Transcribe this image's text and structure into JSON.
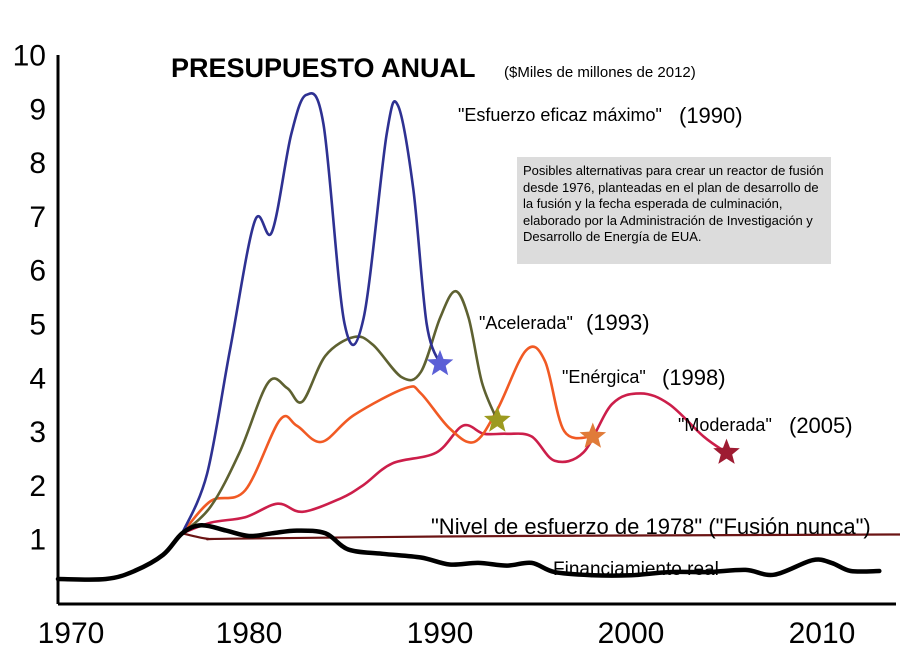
{
  "chart_data": {
    "type": "line",
    "title": "PRESUPUESTO ANUAL",
    "subtitle": "($Miles de millones de 2012)",
    "note": "Posibles alternativas para crear un reactor de fusión desde 1976, planteadas en el plan de desarrollo de la fusión y la fecha esperada de culminación, elaborado por la Administración de Investigación y Desarrollo de Energía de EUA.",
    "x_ticks": [
      "1970",
      "1980",
      "1990",
      "2000",
      "2010"
    ],
    "y_ticks": [
      "1",
      "2",
      "3",
      "4",
      "5",
      "6",
      "7",
      "8",
      "9",
      "10"
    ],
    "xlim": [
      1970,
      2015
    ],
    "ylim": [
      0,
      10
    ],
    "grid": false,
    "series": [
      {
        "name": "\"Esfuerzo eficaz máximo\"",
        "year_label": "(1990)",
        "color": "#2e3192",
        "end_marker_color": "#5b5fd6",
        "points": [
          [
            1976.5,
            1.1
          ],
          [
            1977.8,
            2.2
          ],
          [
            1979,
            4.5
          ],
          [
            1980.3,
            6.9
          ],
          [
            1981.2,
            6.7
          ],
          [
            1982.2,
            8.5
          ],
          [
            1983,
            9.25
          ],
          [
            1983.9,
            8.7
          ],
          [
            1985,
            5.0
          ],
          [
            1986,
            5.1
          ],
          [
            1987.2,
            8.5
          ],
          [
            1987.8,
            9.05
          ],
          [
            1988.6,
            7.5
          ],
          [
            1989.3,
            5.0
          ],
          [
            1990,
            4.25
          ]
        ]
      },
      {
        "name": "\"Acelerada\"",
        "year_label": "(1993)",
        "color": "#5e6131",
        "end_marker_color": "#9c9a1f",
        "points": [
          [
            1976.5,
            1.1
          ],
          [
            1978,
            1.6
          ],
          [
            1979.5,
            2.6
          ],
          [
            1981,
            3.9
          ],
          [
            1982,
            3.8
          ],
          [
            1982.8,
            3.55
          ],
          [
            1984,
            4.4
          ],
          [
            1985.5,
            4.75
          ],
          [
            1986.5,
            4.6
          ],
          [
            1988,
            4.0
          ],
          [
            1989,
            4.1
          ],
          [
            1990,
            5.1
          ],
          [
            1990.8,
            5.6
          ],
          [
            1991.5,
            5.1
          ],
          [
            1992.2,
            3.9
          ],
          [
            1993,
            3.2
          ]
        ]
      },
      {
        "name": "\"Enérgica\"",
        "year_label": "(1998)",
        "color": "#f15a24",
        "end_marker_color": "#e07b39",
        "points": [
          [
            1976.5,
            1.1
          ],
          [
            1978,
            1.7
          ],
          [
            1979.8,
            1.9
          ],
          [
            1981.6,
            3.2
          ],
          [
            1982.5,
            3.1
          ],
          [
            1983.8,
            2.8
          ],
          [
            1985.5,
            3.3
          ],
          [
            1988.2,
            3.8
          ],
          [
            1989,
            3.7
          ],
          [
            1990.5,
            3.05
          ],
          [
            1991.8,
            2.8
          ],
          [
            1993,
            3.4
          ],
          [
            1994.5,
            4.5
          ],
          [
            1995.5,
            4.3
          ],
          [
            1996.5,
            3.0
          ],
          [
            1998,
            2.9
          ]
        ]
      },
      {
        "name": "\"Moderada\"",
        "year_label": "(2005)",
        "color": "#cc1e4a",
        "end_marker_color": "#9e1b32",
        "points": [
          [
            1976.5,
            1.1
          ],
          [
            1978,
            1.3
          ],
          [
            1979.8,
            1.4
          ],
          [
            1981.5,
            1.65
          ],
          [
            1982.8,
            1.5
          ],
          [
            1984.8,
            1.75
          ],
          [
            1986,
            2.0
          ],
          [
            1987.5,
            2.4
          ],
          [
            1989.8,
            2.6
          ],
          [
            1991.2,
            3.1
          ],
          [
            1992.3,
            2.95
          ],
          [
            1993.5,
            2.95
          ],
          [
            1994.8,
            2.9
          ],
          [
            1996,
            2.45
          ],
          [
            1997.5,
            2.6
          ],
          [
            1999,
            3.5
          ],
          [
            2000.5,
            3.7
          ],
          [
            2002,
            3.5
          ],
          [
            2003.8,
            2.9
          ],
          [
            2005,
            2.6
          ]
        ]
      },
      {
        "name": "\"Nivel de esfuerzo de 1978\" (\"Fusión nunca\")",
        "year_label": "",
        "color": "#6b1414",
        "end_marker_color": "",
        "points": [
          [
            1976.5,
            1.1
          ],
          [
            1977.8,
            1.0
          ],
          [
            1979,
            1.0
          ],
          [
            1990,
            1.04
          ],
          [
            2000,
            1.06
          ],
          [
            2015,
            1.08
          ]
        ]
      },
      {
        "name": "Financiamiento real",
        "year_label": "",
        "color": "#000000",
        "end_marker_color": "",
        "points": [
          [
            1970,
            0.25
          ],
          [
            1972.5,
            0.25
          ],
          [
            1974,
            0.4
          ],
          [
            1975.5,
            0.7
          ],
          [
            1976.5,
            1.1
          ],
          [
            1977.5,
            1.25
          ],
          [
            1978.8,
            1.15
          ],
          [
            1980,
            1.05
          ],
          [
            1981.2,
            1.1
          ],
          [
            1982.5,
            1.15
          ],
          [
            1984,
            1.1
          ],
          [
            1985.2,
            0.8
          ],
          [
            1987,
            0.72
          ],
          [
            1989,
            0.65
          ],
          [
            1990.5,
            0.52
          ],
          [
            1992,
            0.55
          ],
          [
            1993.5,
            0.5
          ],
          [
            1994.8,
            0.55
          ],
          [
            1996,
            0.38
          ],
          [
            1998,
            0.32
          ],
          [
            2000,
            0.32
          ],
          [
            2002,
            0.38
          ],
          [
            2004,
            0.38
          ],
          [
            2006,
            0.42
          ],
          [
            2007.5,
            0.33
          ],
          [
            2009.5,
            0.6
          ],
          [
            2010.5,
            0.55
          ],
          [
            2011.5,
            0.4
          ],
          [
            2013,
            0.4
          ]
        ]
      }
    ]
  }
}
